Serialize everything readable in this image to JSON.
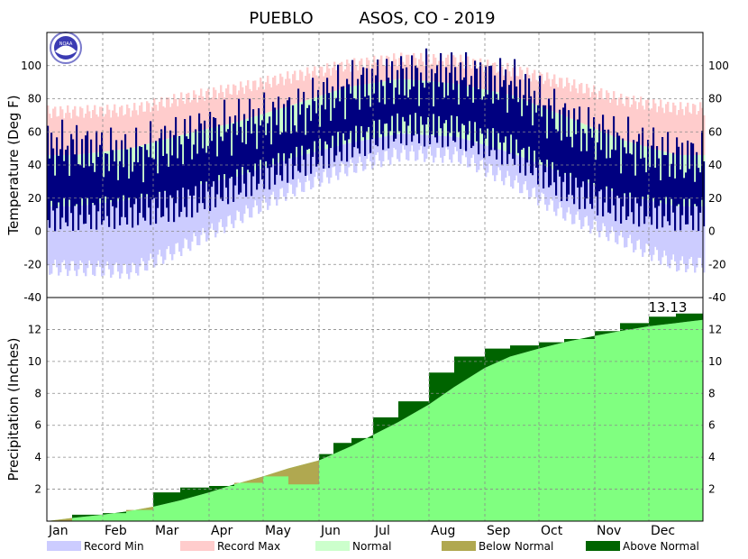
{
  "title_left": "PUEBLO",
  "title_right": "ASOS, CO - 2019",
  "colors": {
    "record_min": "#ccccff",
    "record_max": "#ffcccc",
    "normal_temp": "#ccffcc",
    "actual_temp": "#000080",
    "normal_precip": "#80ff80",
    "below_normal": "#b0a850",
    "above_normal": "#006400"
  },
  "chart_data": [
    {
      "type": "bar",
      "name": "temperature",
      "ylabel": "Temperature (Deg F)",
      "ylim": [
        -40,
        120
      ],
      "yticks": [
        -40,
        -20,
        0,
        20,
        40,
        60,
        80,
        100
      ],
      "months": [
        "Jan",
        "Feb",
        "Mar",
        "Apr",
        "May",
        "Jun",
        "Jul",
        "Aug",
        "Sep",
        "Oct",
        "Nov",
        "Dec"
      ],
      "month_index": [
        1,
        2,
        3,
        4,
        5,
        6,
        7,
        8,
        9,
        10,
        11,
        12
      ],
      "record_max": [
        72,
        73,
        80,
        86,
        93,
        100,
        104,
        103,
        97,
        89,
        79,
        74
      ],
      "record_min": [
        -22,
        -24,
        -10,
        8,
        25,
        38,
        47,
        46,
        30,
        10,
        -5,
        -20
      ],
      "normal_max": [
        46,
        50,
        58,
        66,
        76,
        87,
        92,
        89,
        82,
        69,
        55,
        46
      ],
      "normal_min": [
        15,
        19,
        26,
        33,
        44,
        53,
        59,
        57,
        47,
        34,
        22,
        15
      ],
      "actual_max": [
        50,
        45,
        55,
        64,
        70,
        86,
        92,
        93,
        88,
        65,
        52,
        44
      ],
      "actual_min": [
        10,
        12,
        16,
        28,
        40,
        52,
        62,
        60,
        48,
        26,
        14,
        10
      ]
    },
    {
      "type": "area",
      "name": "precipitation",
      "ylabel": "Precipitation (Inches)",
      "ylim": [
        0,
        14
      ],
      "yticks": [
        2,
        4,
        6,
        8,
        10,
        12
      ],
      "months": [
        "Jan",
        "Feb",
        "Mar",
        "Apr",
        "May",
        "Jun",
        "Jul",
        "Aug",
        "Sep",
        "Oct",
        "Nov",
        "Dec"
      ],
      "x": [
        1,
        15,
        32,
        45,
        60,
        75,
        91,
        105,
        121,
        135,
        152,
        160,
        170,
        182,
        196,
        213,
        227,
        244,
        258,
        274,
        288,
        305,
        319,
        335,
        350,
        365
      ],
      "normal": [
        0.0,
        0.2,
        0.4,
        0.6,
        0.9,
        1.3,
        1.8,
        2.3,
        2.8,
        3.3,
        3.8,
        4.2,
        4.7,
        5.4,
        6.2,
        7.3,
        8.4,
        9.6,
        10.3,
        10.8,
        11.2,
        11.6,
        11.9,
        12.2,
        12.4,
        12.6
      ],
      "actual": [
        0.0,
        0.4,
        0.5,
        0.7,
        1.8,
        2.1,
        2.2,
        2.4,
        2.8,
        2.3,
        4.2,
        4.9,
        5.2,
        6.5,
        7.5,
        9.3,
        10.3,
        10.8,
        11.0,
        11.2,
        11.4,
        11.9,
        12.4,
        12.8,
        13.0,
        13.13
      ],
      "total_label": "13.13"
    }
  ],
  "legend": [
    {
      "label": "Record Min",
      "color": "#ccccff"
    },
    {
      "label": "Record Max",
      "color": "#ffcccc"
    },
    {
      "label": "Normal",
      "color": "#ccffcc"
    },
    {
      "label": "Below Normal",
      "color": "#b0a850"
    },
    {
      "label": "Above Normal",
      "color": "#006400"
    }
  ]
}
